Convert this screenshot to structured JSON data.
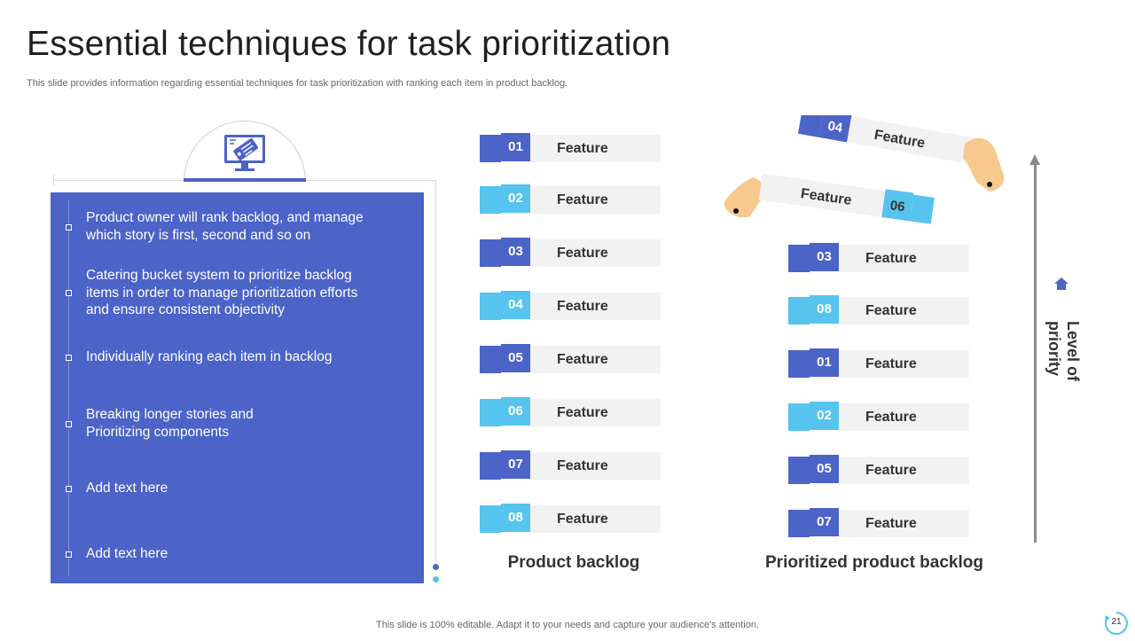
{
  "title": "Essential techniques for task prioritization",
  "subtitle": "This slide provides information regarding essential techniques for task prioritization with ranking each item in product backlog.",
  "left_panel": {
    "icon": "monitor-tag-icon",
    "bullets": [
      "Product owner will rank backlog, and manage|which story is first, second and so on",
      "Catering bucket system to prioritize backlog|items in order to manage prioritization efforts|and ensure consistent objectivity",
      "Individually  ranking each item in backlog",
      "Breaking longer stories and|Prioritizing components",
      "Add text here",
      "Add text here"
    ]
  },
  "product_backlog": {
    "label": "Product backlog",
    "items": [
      {
        "num": "01",
        "text": "Feature"
      },
      {
        "num": "02",
        "text": "Feature"
      },
      {
        "num": "03",
        "text": "Feature"
      },
      {
        "num": "04",
        "text": "Feature"
      },
      {
        "num": "05",
        "text": "Feature"
      },
      {
        "num": "06",
        "text": "Feature"
      },
      {
        "num": "07",
        "text": "Feature"
      },
      {
        "num": "08",
        "text": "Feature"
      }
    ]
  },
  "prioritized_backlog": {
    "label": "Prioritized product backlog",
    "held_items": [
      {
        "num": "04",
        "text": "Feature"
      },
      {
        "num": "06",
        "text": "Feature"
      }
    ],
    "items": [
      {
        "num": "03",
        "text": "Feature"
      },
      {
        "num": "08",
        "text": "Feature"
      },
      {
        "num": "01",
        "text": "Feature"
      },
      {
        "num": "02",
        "text": "Feature"
      },
      {
        "num": "05",
        "text": "Feature"
      },
      {
        "num": "07",
        "text": "Feature"
      }
    ]
  },
  "priority_axis": {
    "line1": "Level of",
    "line2": "priority",
    "icon": "home-icon"
  },
  "colors": {
    "primary": "#4c63c8",
    "accent": "#56c4ee",
    "bar": "#f2f2f2",
    "skin": "#f7c98f"
  },
  "footer": "This slide is 100% editable. Adapt it to your needs and capture your audience's attention.",
  "page_number": "21"
}
